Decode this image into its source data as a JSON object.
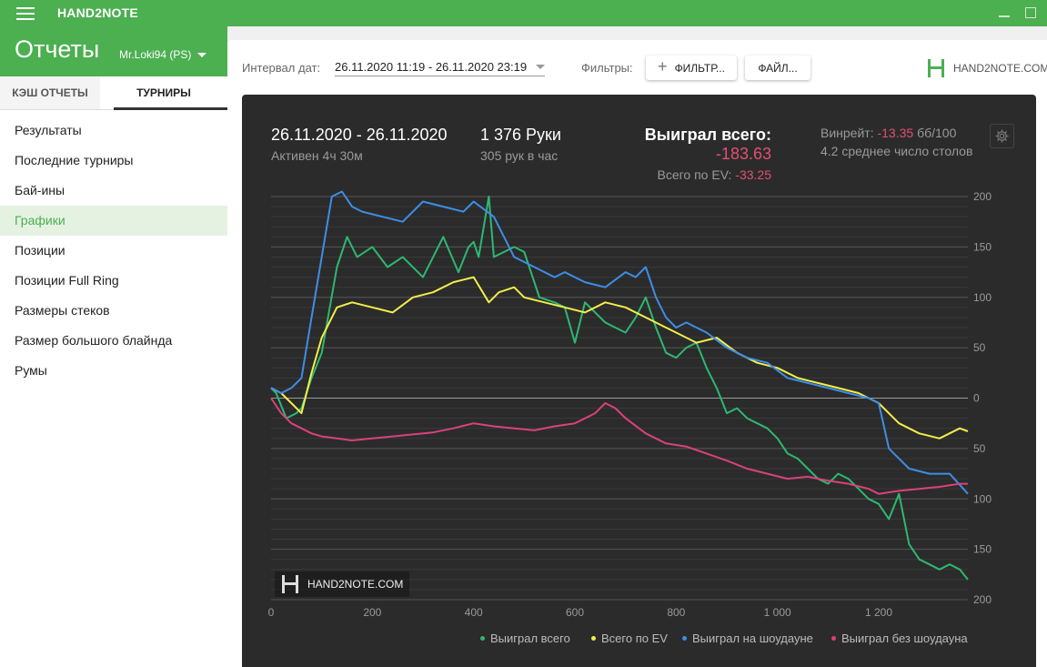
{
  "app": {
    "title": "HAND2NOTE"
  },
  "sidebar": {
    "title": "Отчеты",
    "account": "Mr.Loki94 (PS)",
    "tabs": [
      "КЭШ ОТЧЕТЫ",
      "ТУРНИРЫ"
    ],
    "items": [
      "Результаты",
      "Последние турниры",
      "Бай-ины",
      "Графики",
      "Позиции",
      "Позиции Full Ring",
      "Размеры стеков",
      "Размер большого блайнда",
      "Румы"
    ],
    "active_item": "Графики"
  },
  "filters": {
    "date_label": "Интервал дат:",
    "date_value": "26.11.2020 11:19 - 26.11.2020 23:19",
    "filters_label": "Фильтры:",
    "filter_button": "ФИЛЬТР...",
    "file_button": "ФАЙЛ..."
  },
  "brand": {
    "logo_text": "HAND2NOTE.COM"
  },
  "stats": {
    "date_range": "26.11.2020 - 26.11.2020",
    "active_time": "Активен 4ч 30м",
    "hands": "1 376 Руки",
    "hands_per_hour": "305 рук в час",
    "won_label": "Выиграл всего:",
    "won_value": "-183.63",
    "ev_label": "Всего по EV:",
    "ev_value": "-33.25",
    "winrate_label": "Винрейт:",
    "winrate_value": "-13.35",
    "winrate_unit": "бб/100",
    "tables": "4.2 среднее число столов"
  },
  "colors": {
    "green": "#2eb872",
    "yellow": "#f2ee4a",
    "blue": "#3d8ee6",
    "pink": "#d9427a",
    "accent": "#4caf50"
  },
  "chart_data": {
    "type": "line",
    "x_ticks": [
      "0",
      "200",
      "400",
      "600",
      "800",
      "1 000",
      "1 200"
    ],
    "y_ticks": [
      "200",
      "150",
      "100",
      "50",
      "0",
      "50",
      "100",
      "150",
      "200"
    ],
    "xlim": [
      0,
      1376
    ],
    "ylim": [
      -200,
      200
    ],
    "grid": true,
    "legend_position": "bottom-right",
    "series": [
      {
        "name": "Выиграл всего",
        "color": "#2eb872",
        "x": [
          0,
          10,
          30,
          50,
          60,
          80,
          100,
          130,
          150,
          170,
          200,
          230,
          260,
          300,
          340,
          370,
          390,
          400,
          410,
          430,
          440,
          460,
          480,
          500,
          530,
          560,
          580,
          600,
          620,
          640,
          660,
          680,
          700,
          720,
          740,
          760,
          780,
          800,
          820,
          840,
          860,
          880,
          900,
          920,
          940,
          960,
          980,
          1000,
          1020,
          1040,
          1060,
          1080,
          1100,
          1120,
          1140,
          1160,
          1170,
          1180,
          1200,
          1220,
          1240,
          1260,
          1280,
          1300,
          1320,
          1340,
          1360,
          1376
        ],
        "y": [
          10,
          5,
          -20,
          -15,
          -10,
          20,
          45,
          130,
          160,
          140,
          150,
          130,
          140,
          120,
          160,
          125,
          150,
          155,
          140,
          200,
          140,
          145,
          150,
          145,
          100,
          95,
          90,
          55,
          95,
          85,
          75,
          70,
          65,
          80,
          100,
          70,
          45,
          40,
          50,
          55,
          30,
          10,
          -15,
          -10,
          -20,
          -25,
          -30,
          -40,
          -55,
          -60,
          -70,
          -80,
          -85,
          -75,
          -80,
          -90,
          -95,
          -100,
          -105,
          -120,
          -95,
          -145,
          -160,
          -165,
          -170,
          -165,
          -170,
          -180
        ]
      },
      {
        "name": "Всего по EV",
        "color": "#f2ee4a",
        "x": [
          0,
          20,
          40,
          60,
          80,
          100,
          130,
          160,
          200,
          240,
          280,
          320,
          360,
          400,
          430,
          450,
          480,
          500,
          540,
          580,
          620,
          660,
          700,
          740,
          780,
          800,
          840,
          880,
          920,
          960,
          1000,
          1040,
          1080,
          1120,
          1160,
          1180,
          1200,
          1240,
          1280,
          1320,
          1360,
          1376
        ],
        "y": [
          10,
          5,
          -5,
          -15,
          25,
          60,
          90,
          95,
          90,
          85,
          100,
          105,
          115,
          120,
          95,
          105,
          110,
          100,
          95,
          90,
          85,
          95,
          90,
          80,
          70,
          65,
          55,
          60,
          45,
          35,
          30,
          20,
          15,
          10,
          5,
          0,
          -5,
          -25,
          -35,
          -40,
          -30,
          -33
        ]
      },
      {
        "name": "Выиграл на шоудауне",
        "color": "#3d8ee6",
        "x": [
          0,
          20,
          40,
          60,
          80,
          100,
          120,
          140,
          160,
          180,
          220,
          260,
          300,
          340,
          380,
          400,
          440,
          480,
          520,
          560,
          580,
          620,
          660,
          700,
          720,
          740,
          760,
          780,
          800,
          820,
          860,
          900,
          940,
          980,
          1020,
          1060,
          1100,
          1140,
          1180,
          1200,
          1220,
          1260,
          1300,
          1340,
          1376
        ],
        "y": [
          10,
          5,
          10,
          20,
          80,
          140,
          200,
          205,
          190,
          185,
          180,
          175,
          195,
          190,
          185,
          195,
          180,
          140,
          130,
          120,
          125,
          115,
          110,
          125,
          120,
          130,
          100,
          80,
          70,
          75,
          65,
          50,
          40,
          35,
          20,
          15,
          10,
          5,
          0,
          -5,
          -50,
          -70,
          -75,
          -75,
          -95
        ]
      },
      {
        "name": "Выиграл без шоудауна",
        "color": "#d9427a",
        "x": [
          0,
          20,
          40,
          60,
          80,
          100,
          130,
          160,
          200,
          240,
          280,
          320,
          360,
          400,
          440,
          480,
          520,
          560,
          600,
          640,
          660,
          680,
          700,
          740,
          780,
          820,
          860,
          900,
          940,
          980,
          1020,
          1060,
          1100,
          1140,
          1180,
          1200,
          1240,
          1280,
          1320,
          1360,
          1376
        ],
        "y": [
          0,
          -15,
          -25,
          -30,
          -35,
          -38,
          -40,
          -42,
          -40,
          -38,
          -36,
          -34,
          -30,
          -25,
          -28,
          -30,
          -32,
          -28,
          -25,
          -15,
          -5,
          -10,
          -20,
          -35,
          -45,
          -48,
          -55,
          -62,
          -70,
          -75,
          -80,
          -78,
          -82,
          -85,
          -90,
          -95,
          -92,
          -90,
          -88,
          -85,
          -85
        ]
      }
    ]
  }
}
